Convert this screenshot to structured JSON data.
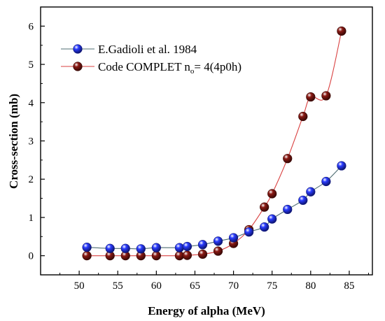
{
  "chart_data": {
    "type": "line",
    "xlabel": "Energy of alpha (MeV)",
    "ylabel": "Cross-section (mb)",
    "xlim": [
      45,
      88
    ],
    "ylim": [
      -0.5,
      6.5
    ],
    "xticks": [
      "50",
      "55",
      "60",
      "65",
      "70",
      "75",
      "80",
      "85"
    ],
    "yticks": [
      "0",
      "1",
      "2",
      "3",
      "4",
      "5",
      "6"
    ],
    "grid": false,
    "legend_position": "top-left",
    "series": [
      {
        "name": "E.Gadioli et al. 1984",
        "color": "#2a3cff",
        "line_color": "#4f6d73",
        "x": [
          51,
          54,
          56,
          58,
          60,
          63,
          64,
          66,
          68,
          70,
          72,
          74,
          75,
          77,
          79,
          80,
          82,
          84
        ],
        "y": [
          0.22,
          0.19,
          0.19,
          0.18,
          0.21,
          0.21,
          0.24,
          0.29,
          0.38,
          0.47,
          0.62,
          0.75,
          0.96,
          1.21,
          1.45,
          1.67,
          1.94,
          2.35
        ]
      },
      {
        "name_main": "Code COMPLET n",
        "name_sub": "o",
        "name_tail": "= 4(4p0h)",
        "color": "#8b1a14",
        "line_color": "#d94040",
        "x": [
          51,
          54,
          56,
          58,
          60,
          63,
          64,
          66,
          68,
          70,
          72,
          74,
          75,
          77,
          79,
          80,
          82,
          84
        ],
        "y": [
          0.0,
          0.0,
          0.0,
          0.0,
          0.0,
          0.0,
          0.01,
          0.04,
          0.12,
          0.32,
          0.68,
          1.27,
          1.62,
          2.54,
          3.64,
          4.15,
          4.18,
          5.87
        ]
      }
    ]
  }
}
